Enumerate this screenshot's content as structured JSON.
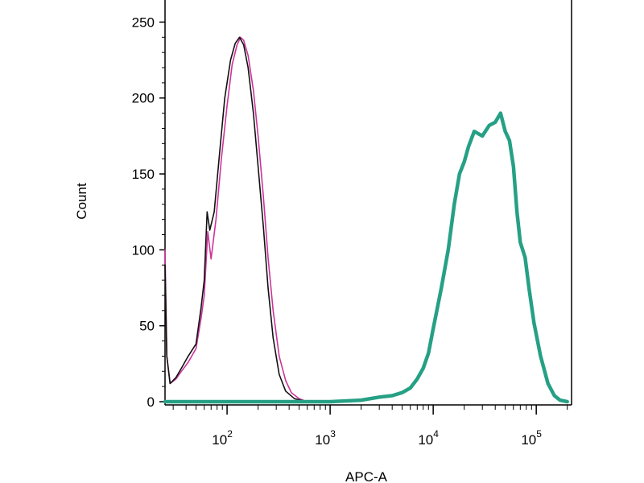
{
  "chart_data": {
    "type": "line",
    "title": "",
    "xlabel": "APC-A",
    "ylabel": "Count",
    "xscale": "log",
    "xlim": [
      25,
      220000
    ],
    "ylim": [
      0,
      255
    ],
    "grid": false,
    "legend": "none",
    "x_tick_labels": [
      {
        "value": 100,
        "base": "10",
        "exp": "2"
      },
      {
        "value": 1000,
        "base": "10",
        "exp": "3"
      },
      {
        "value": 10000,
        "base": "10",
        "exp": "4"
      },
      {
        "value": 100000,
        "base": "10",
        "exp": "5"
      }
    ],
    "y_ticks": [
      0,
      50,
      100,
      150,
      200,
      250
    ],
    "series": [
      {
        "color": "#cc3399",
        "width": 1.6,
        "points": [
          [
            25,
            100
          ],
          [
            26,
            30
          ],
          [
            28,
            12
          ],
          [
            32,
            15
          ],
          [
            36,
            20
          ],
          [
            42,
            26
          ],
          [
            50,
            35
          ],
          [
            56,
            55
          ],
          [
            60,
            70
          ],
          [
            65,
            112
          ],
          [
            70,
            94
          ],
          [
            78,
            120
          ],
          [
            88,
            160
          ],
          [
            100,
            195
          ],
          [
            112,
            222
          ],
          [
            125,
            235
          ],
          [
            135,
            240
          ],
          [
            145,
            238
          ],
          [
            160,
            228
          ],
          [
            180,
            205
          ],
          [
            200,
            175
          ],
          [
            225,
            135
          ],
          [
            250,
            95
          ],
          [
            280,
            60
          ],
          [
            320,
            30
          ],
          [
            370,
            14
          ],
          [
            420,
            6
          ],
          [
            500,
            2
          ],
          [
            600,
            0
          ],
          [
            800,
            0
          ]
        ]
      },
      {
        "color": "#111111",
        "width": 1.6,
        "points": [
          [
            25,
            90
          ],
          [
            26,
            30
          ],
          [
            28,
            12
          ],
          [
            32,
            16
          ],
          [
            36,
            22
          ],
          [
            42,
            30
          ],
          [
            50,
            38
          ],
          [
            56,
            62
          ],
          [
            60,
            80
          ],
          [
            64,
            125
          ],
          [
            68,
            113
          ],
          [
            75,
            125
          ],
          [
            85,
            165
          ],
          [
            95,
            200
          ],
          [
            108,
            225
          ],
          [
            120,
            236
          ],
          [
            132,
            240
          ],
          [
            145,
            235
          ],
          [
            160,
            220
          ],
          [
            180,
            190
          ],
          [
            200,
            155
          ],
          [
            225,
            115
          ],
          [
            250,
            75
          ],
          [
            280,
            42
          ],
          [
            320,
            18
          ],
          [
            370,
            7
          ],
          [
            450,
            2
          ],
          [
            600,
            0
          ],
          [
            800,
            0
          ]
        ]
      },
      {
        "color": "#26a085",
        "width": 4.5,
        "points": [
          [
            25,
            0
          ],
          [
            1000,
            0
          ],
          [
            2000,
            1
          ],
          [
            3000,
            3
          ],
          [
            4000,
            4
          ],
          [
            5000,
            6
          ],
          [
            6000,
            9
          ],
          [
            7000,
            15
          ],
          [
            8000,
            22
          ],
          [
            9000,
            32
          ],
          [
            10000,
            48
          ],
          [
            11000,
            62
          ],
          [
            12000,
            75
          ],
          [
            14000,
            100
          ],
          [
            16000,
            130
          ],
          [
            18000,
            150
          ],
          [
            20000,
            158
          ],
          [
            22000,
            168
          ],
          [
            25000,
            178
          ],
          [
            30000,
            175
          ],
          [
            35000,
            182
          ],
          [
            40000,
            184
          ],
          [
            45000,
            190
          ],
          [
            50000,
            178
          ],
          [
            55000,
            172
          ],
          [
            60000,
            155
          ],
          [
            65000,
            125
          ],
          [
            70000,
            105
          ],
          [
            78000,
            95
          ],
          [
            85000,
            75
          ],
          [
            95000,
            52
          ],
          [
            110000,
            30
          ],
          [
            130000,
            12
          ],
          [
            150000,
            4
          ],
          [
            170000,
            1
          ],
          [
            200000,
            0
          ]
        ]
      }
    ]
  }
}
